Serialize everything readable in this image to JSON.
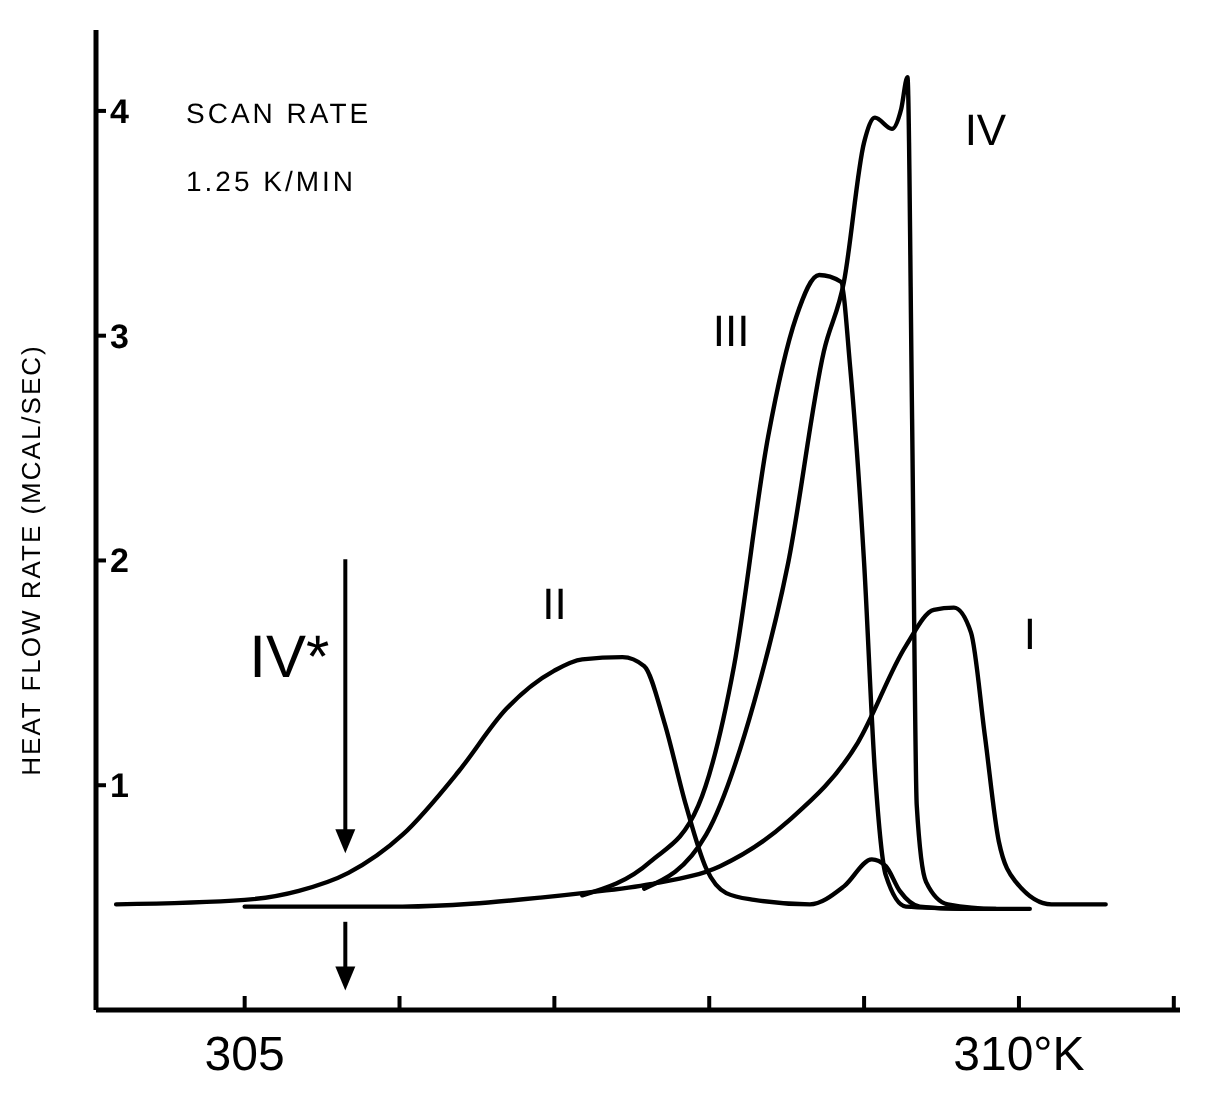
{
  "chart_data": {
    "type": "line",
    "ylabel": "HEAT FLOW RATE (MCAL/SEC)",
    "xlim": [
      304.04,
      311.04
    ],
    "ylim": [
      0,
      4.36
    ],
    "xticks": [
      {
        "value": 305,
        "label": "305"
      },
      {
        "value": 306,
        "label": null
      },
      {
        "value": 307,
        "label": null
      },
      {
        "value": 308,
        "label": null
      },
      {
        "value": 309,
        "label": null
      },
      {
        "value": 310,
        "label": "310°K"
      },
      {
        "value": 311,
        "label": null
      }
    ],
    "yticks": [
      1,
      2,
      3,
      4
    ],
    "grid": false,
    "marker": "none",
    "line_style": "solid",
    "series": [
      {
        "name": "I",
        "color": "#000000",
        "x": [
          305.0,
          306.02,
          306.91,
          307.18,
          307.62,
          308.07,
          308.51,
          308.96,
          309.27,
          309.45,
          309.58,
          309.69,
          309.78,
          309.87,
          309.98,
          310.21,
          310.56
        ],
        "values": [
          0.46,
          0.46,
          0.5,
          0.52,
          0.56,
          0.64,
          0.84,
          1.19,
          1.62,
          1.78,
          1.79,
          1.68,
          1.22,
          0.75,
          0.57,
          0.47,
          0.47
        ]
      },
      {
        "name": "II",
        "color": "#000000",
        "x": [
          304.17,
          305.0,
          305.35,
          305.67,
          306.02,
          306.38,
          306.69,
          307.0,
          307.18,
          307.44,
          307.58,
          307.71,
          307.85,
          307.98,
          308.11,
          308.29,
          308.65,
          308.87,
          309.05,
          309.14,
          309.23,
          309.36,
          309.63,
          309.85
        ],
        "values": [
          0.47,
          0.49,
          0.53,
          0.61,
          0.78,
          1.06,
          1.34,
          1.51,
          1.56,
          1.57,
          1.53,
          1.28,
          0.91,
          0.63,
          0.52,
          0.49,
          0.47,
          0.55,
          0.67,
          0.64,
          0.53,
          0.46,
          0.45,
          0.45
        ]
      },
      {
        "name": "III",
        "color": "#000000",
        "x": [
          307.18,
          307.62,
          307.93,
          308.16,
          308.38,
          308.56,
          308.71,
          308.85,
          308.91,
          309.0,
          309.07,
          309.14,
          309.27,
          309.67
        ],
        "values": [
          0.51,
          0.66,
          0.91,
          1.53,
          2.55,
          3.08,
          3.27,
          3.24,
          2.86,
          1.99,
          1.06,
          0.6,
          0.46,
          0.45
        ]
      },
      {
        "name": "IV",
        "color": "#000000",
        "x": [
          307.58,
          307.98,
          308.29,
          308.51,
          308.74,
          308.87,
          309.0,
          309.07,
          309.18,
          309.24,
          309.28,
          309.31,
          309.34,
          309.4,
          309.54,
          309.85,
          310.07
        ],
        "values": [
          0.54,
          0.78,
          1.37,
          1.99,
          2.93,
          3.24,
          3.86,
          3.97,
          3.92,
          4.01,
          4.15,
          2.63,
          0.91,
          0.57,
          0.47,
          0.45,
          0.45
        ]
      }
    ],
    "ref_lines": [
      {
        "axis": "x",
        "value": 305.65,
        "label": "IV*"
      }
    ],
    "annotations": [
      "SCAN RATE",
      "1.25 K/MIN"
    ]
  }
}
